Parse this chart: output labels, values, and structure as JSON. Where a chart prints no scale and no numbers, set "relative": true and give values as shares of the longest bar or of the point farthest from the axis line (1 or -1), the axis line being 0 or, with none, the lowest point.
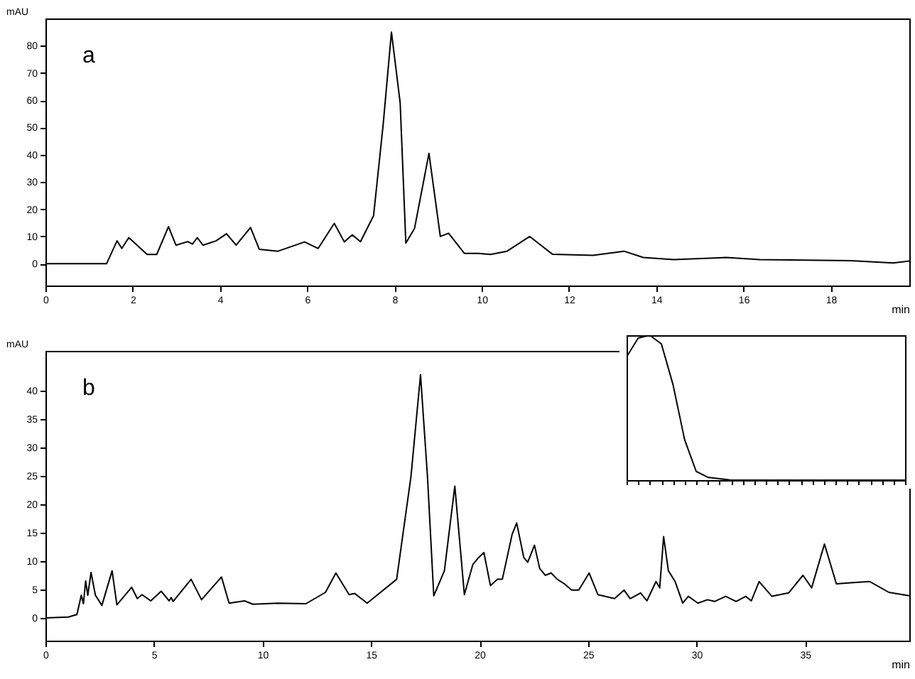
{
  "chart_data": [
    {
      "type": "line",
      "xlabel": "min",
      "ylabel": "mAU",
      "annotations": [
        "a"
      ],
      "color": "#000000",
      "xlim": [
        0,
        19.8
      ],
      "ylim": [
        -8,
        90
      ],
      "xticks": [
        0,
        2,
        4,
        6,
        8,
        10,
        12,
        14,
        16,
        18
      ],
      "yticks": [
        0,
        10,
        20,
        30,
        40,
        50,
        60,
        70,
        80
      ],
      "x": [
        0,
        1.4,
        1.64,
        1.75,
        1.91,
        2.33,
        2.55,
        2.82,
        2.99,
        3.26,
        3.37,
        3.48,
        3.61,
        3.91,
        4.15,
        4.37,
        4.7,
        4.9,
        5.33,
        5.94,
        6.25,
        6.62,
        6.85,
        7.03,
        7.22,
        7.52,
        7.74,
        7.93,
        8.13,
        8.26,
        8.46,
        8.79,
        9.05,
        9.24,
        9.6,
        9.92,
        10.2,
        10.58,
        11.1,
        11.62,
        12.55,
        13.26,
        13.7,
        14.4,
        15.6,
        16.37,
        18.45,
        19.43,
        19.8
      ],
      "values": [
        0,
        0,
        8.4,
        5.6,
        9.6,
        3.4,
        3.4,
        13.6,
        6.8,
        8.1,
        7.2,
        9.6,
        6.8,
        8.4,
        11,
        6.8,
        13.3,
        5.3,
        4.6,
        8,
        5.6,
        14.8,
        8,
        10.6,
        8.1,
        17.6,
        51,
        85,
        59,
        7.6,
        13,
        40.5,
        10,
        11.2,
        3.8,
        3.8,
        3.4,
        4.6,
        10,
        3.5,
        3.1,
        4.6,
        2.3,
        1.5,
        2.3,
        1.5,
        1.1,
        0.3,
        1
      ]
    },
    {
      "type": "line",
      "xlabel": "min",
      "ylabel": "mAU",
      "annotations": [
        "b"
      ],
      "color": "#000000",
      "xlim": [
        0,
        39.8
      ],
      "ylim": [
        -4,
        47
      ],
      "xticks": [
        0,
        5,
        10,
        15,
        20,
        25,
        30,
        35
      ],
      "yticks": [
        0,
        5,
        10,
        15,
        20,
        25,
        30,
        35,
        40
      ],
      "x": [
        0,
        1.05,
        1.45,
        1.65,
        1.75,
        1.85,
        1.95,
        2.1,
        2.3,
        2.6,
        3.07,
        3.29,
        3.97,
        4.23,
        4.45,
        4.85,
        5.33,
        5.7,
        5.79,
        5.88,
        6.71,
        7.19,
        8.11,
        8.46,
        9.17,
        9.56,
        10.7,
        12.0,
        12.9,
        13.38,
        13.99,
        14.25,
        14.82,
        16.18,
        16.84,
        17.28,
        17.6,
        17.89,
        18.38,
        18.86,
        19.3,
        19.69,
        19.95,
        20.2,
        20.5,
        20.83,
        21.05,
        21.5,
        21.71,
        22.04,
        22.22,
        22.53,
        22.77,
        23.03,
        23.3,
        23.58,
        23.91,
        24.24,
        24.57,
        25.05,
        25.45,
        26.22,
        26.66,
        26.94,
        27.42,
        27.71,
        28.13,
        28.3,
        28.48,
        28.7,
        29.01,
        29.36,
        29.62,
        30.06,
        30.5,
        30.83,
        31.34,
        31.82,
        32.26,
        32.52,
        32.88,
        33.47,
        34.24,
        34.9,
        35.3,
        35.89,
        36.44,
        37.1,
        37.98,
        38.86,
        39.8
      ],
      "values": [
        0,
        0.15,
        0.6,
        4,
        2.5,
        6.5,
        4,
        8,
        4,
        2.2,
        8.3,
        2.3,
        5.4,
        3.4,
        4.1,
        3.0,
        4.7,
        3.0,
        3.6,
        2.9,
        6.8,
        3.2,
        7.2,
        2.6,
        3.0,
        2.4,
        2.6,
        2.5,
        4.5,
        7.9,
        4.1,
        4.3,
        2.6,
        6.8,
        24.9,
        42.8,
        24.9,
        3.9,
        8.3,
        23.2,
        4.1,
        9.4,
        10.6,
        11.5,
        5.7,
        6.8,
        6.8,
        14.7,
        16.7,
        10.6,
        9.8,
        12.8,
        8.7,
        7.5,
        7.9,
        6.8,
        6.0,
        4.9,
        4.9,
        7.9,
        4.1,
        3.4,
        4.9,
        3.4,
        4.4,
        3.0,
        6.4,
        5.3,
        14.3,
        8.3,
        6.4,
        2.6,
        3.8,
        2.6,
        3.2,
        2.9,
        3.8,
        2.9,
        3.8,
        3.0,
        6.4,
        3.8,
        4.4,
        7.5,
        5.3,
        13.0,
        6.0,
        6.2,
        6.4,
        4.5,
        3.9
      ]
    },
    {
      "type": "line",
      "relative": true,
      "tick_labels": false,
      "color": "#000000",
      "categories": [
        null,
        null,
        null,
        null,
        null,
        null,
        null,
        null,
        null,
        null,
        null,
        null,
        null,
        null,
        null,
        null,
        null,
        null,
        null,
        null,
        null,
        null,
        null,
        null,
        null
      ],
      "values": [
        0.85,
        0.98,
        1,
        0.94,
        0.66,
        0.28,
        0.06,
        0.02,
        0.01,
        0,
        0,
        0,
        0,
        0,
        0,
        0,
        0,
        0,
        0,
        0,
        0,
        0,
        0,
        0,
        0
      ]
    }
  ]
}
